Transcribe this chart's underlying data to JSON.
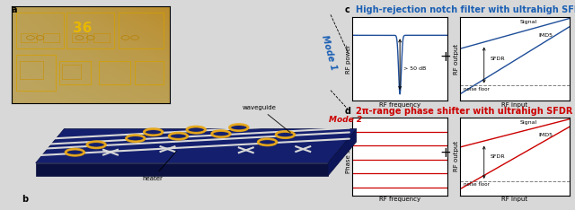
{
  "title_c": "High-rejection notch filter with ultrahigh SFDR",
  "title_d": "2π-range phase shifter with ultrahigh SFDR",
  "label_c": "c",
  "label_d": "d",
  "label_a": "a",
  "label_b": "b",
  "mode1_text": "Mode 1",
  "mode2_text": "Mode 2",
  "notch_annotation": "> 50 dB",
  "sfdr_label": "SFDR",
  "imd5_label": "IMD5",
  "signal_label": "Signal",
  "noise_floor_label": "noise floor",
  "rf_frequency_label": "RF frequency",
  "rf_input_label": "RF input",
  "rf_power_label": "RF power",
  "rf_output_label": "RF output",
  "phase_shift_label": "Phase shift",
  "waveguide_label": "waveguide",
  "heater_label": "heater",
  "bg_color": "#d8d8d8",
  "plot_bg": "#ffffff",
  "title_color_blue": "#1a5fb4",
  "title_color_red": "#cc0000",
  "blue_line": "#1f4e99",
  "red_line": "#cc0000",
  "mode1_color": "#1a5fb4",
  "mode2_color": "#cc0000",
  "board_color": "#14206e",
  "board_side_color": "#0a1040",
  "photo_color": "#8B6000",
  "photo_grid": "#c8a000",
  "heater_color": "#e8a000",
  "waveguide_color": "#e0e0e0"
}
